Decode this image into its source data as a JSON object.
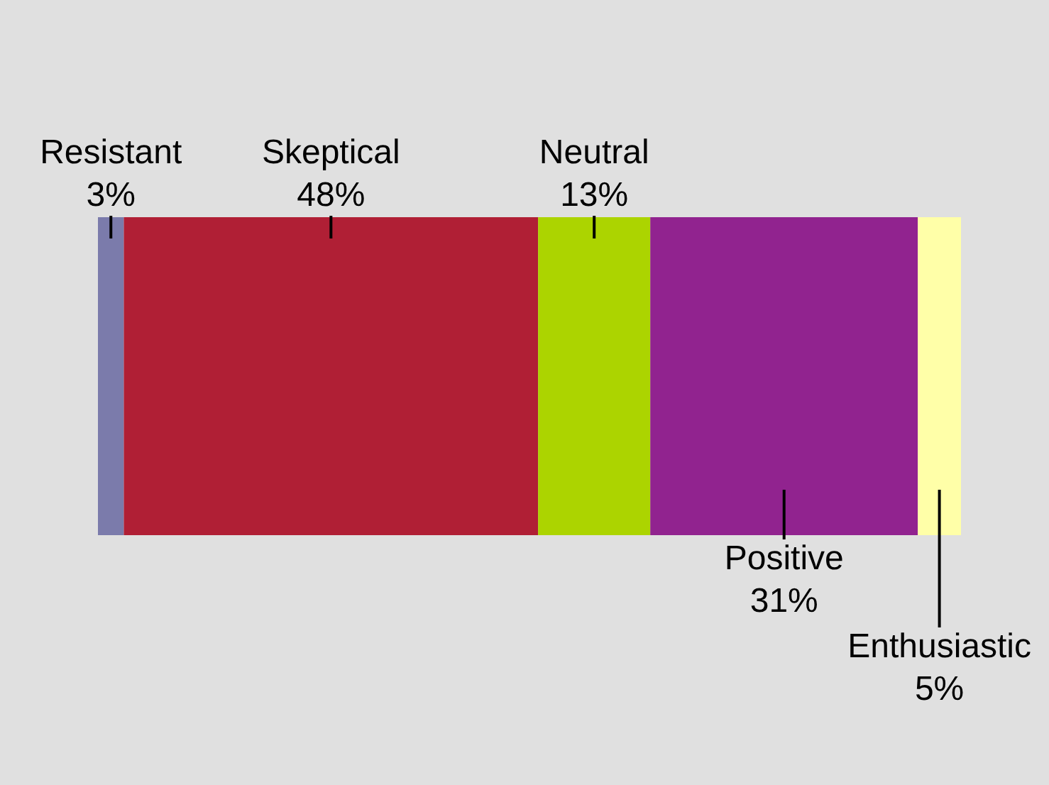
{
  "chart_data": {
    "type": "bar",
    "orientation": "horizontal",
    "stacked": true,
    "categories": [
      null
    ],
    "series": [
      {
        "name": "Resistant",
        "color": "#7b7bab",
        "values": [
          3
        ],
        "value_labels": [
          "3%"
        ]
      },
      {
        "name": "Skeptical",
        "color": "#b01f35",
        "values": [
          48
        ],
        "value_labels": [
          "48%"
        ]
      },
      {
        "name": "Neutral",
        "color": "#acd400",
        "values": [
          13
        ],
        "value_labels": [
          "13%"
        ]
      },
      {
        "name": "Positive",
        "color": "#91238f",
        "values": [
          31
        ],
        "value_labels": [
          "31%"
        ]
      },
      {
        "name": "Enthusiastic",
        "color": "#ffffa8",
        "values": [
          5
        ],
        "value_labels": [
          "5%"
        ]
      }
    ]
  }
}
